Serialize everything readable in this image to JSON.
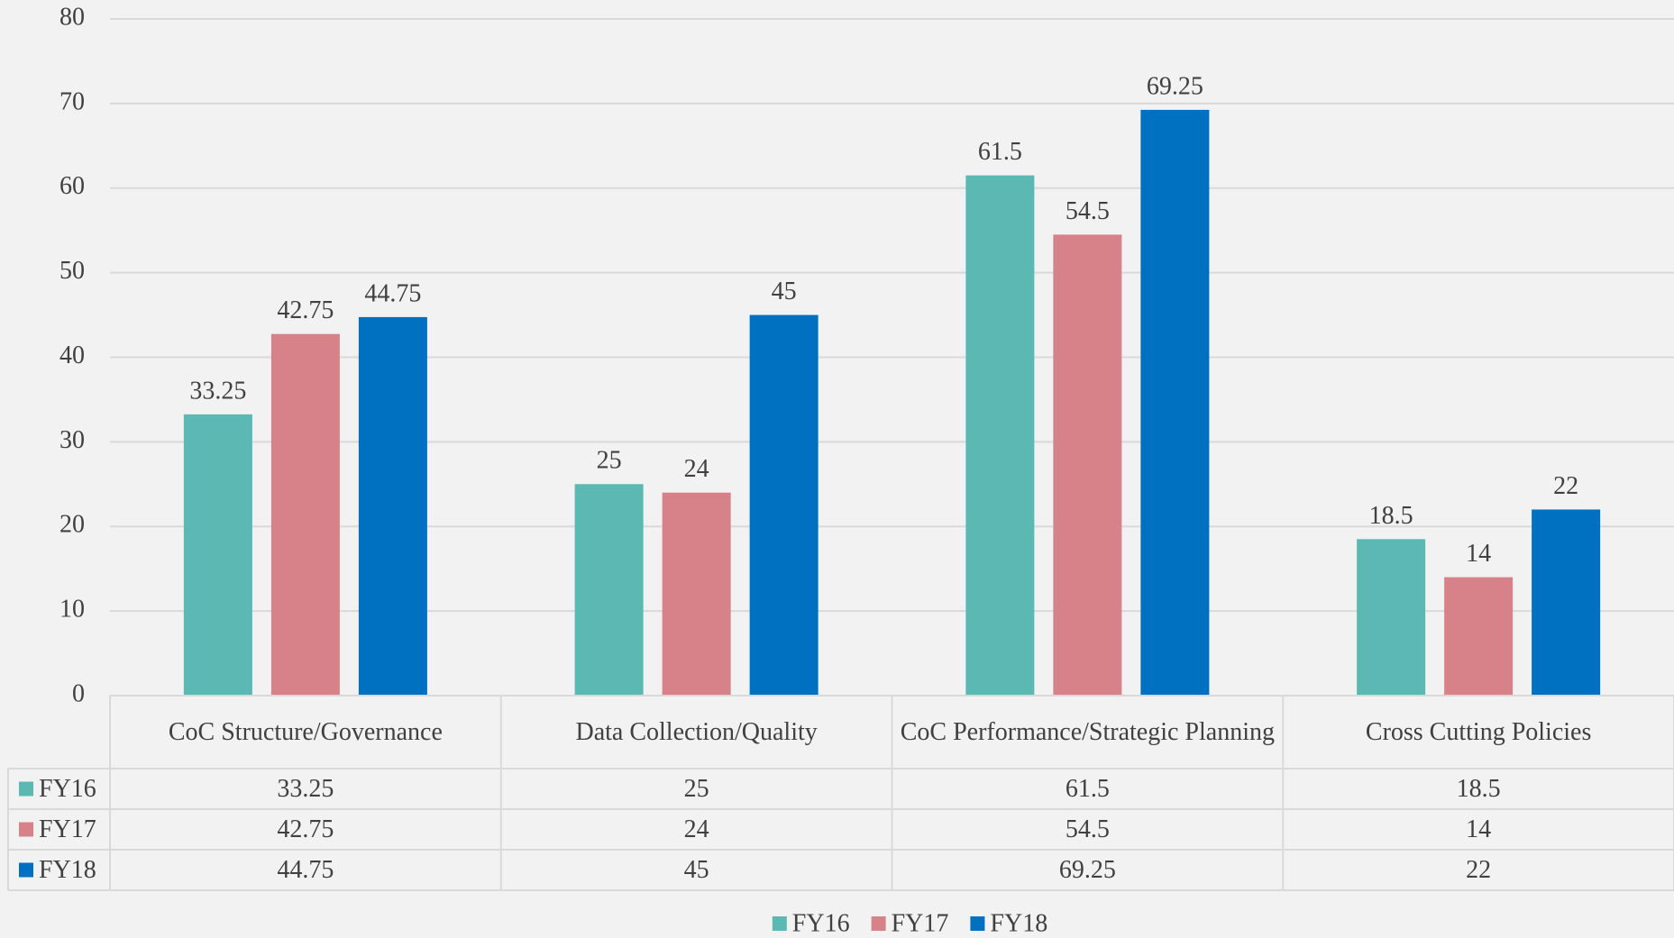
{
  "chart_data": {
    "type": "bar",
    "categories": [
      "CoC Structure/Governance",
      "Data Collection/Quality",
      "CoC Performance/Strategic Planning",
      "Cross Cutting Policies"
    ],
    "series": [
      {
        "name": "FY16",
        "color": "#5bb8b3",
        "values": [
          33.25,
          25,
          61.5,
          18.5
        ]
      },
      {
        "name": "FY17",
        "color": "#d78188",
        "values": [
          42.75,
          24,
          54.5,
          14
        ]
      },
      {
        "name": "FY18",
        "color": "#0070c0",
        "values": [
          44.75,
          45,
          69.25,
          22
        ]
      }
    ],
    "ylim": [
      0,
      80
    ],
    "yticks": [
      0,
      10,
      20,
      30,
      40,
      50,
      60,
      70,
      80
    ],
    "grid": true,
    "data_table": true,
    "legend": "bottom"
  }
}
